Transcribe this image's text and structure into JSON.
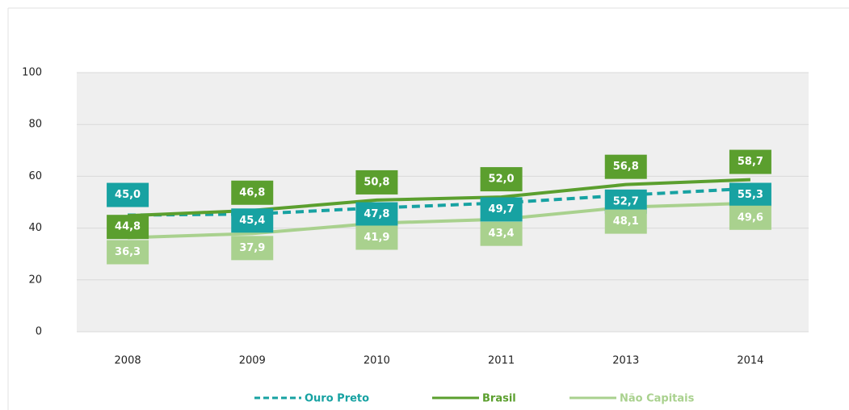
{
  "chart_data": {
    "type": "line",
    "categories": [
      "2008",
      "2009",
      "2010",
      "2011",
      "2013",
      "2014"
    ],
    "series": [
      {
        "name": "Ouro Preto",
        "color": "#17a2a2",
        "dashed": true,
        "values": [
          45.0,
          45.4,
          47.8,
          49.7,
          52.7,
          55.3
        ],
        "value_labels": [
          "45,0",
          "45,4",
          "47,8",
          "49,7",
          "52,7",
          "55,3"
        ]
      },
      {
        "name": "Brasil",
        "color": "#5b9f2e",
        "dashed": false,
        "values": [
          44.8,
          46.8,
          50.8,
          52.0,
          56.8,
          58.7
        ],
        "value_labels": [
          "44,8",
          "46,8",
          "50,8",
          "52,0",
          "56,8",
          "58,7"
        ]
      },
      {
        "name": "Não Capitais",
        "color": "#a9d18e",
        "dashed": false,
        "values": [
          36.3,
          37.9,
          41.9,
          43.4,
          48.1,
          49.6
        ],
        "value_labels": [
          "36,3",
          "37,9",
          "41,9",
          "43,4",
          "48,1",
          "49,6"
        ]
      }
    ],
    "ylim": [
      0,
      100
    ],
    "yticks": [
      0,
      20,
      40,
      60,
      80,
      100
    ],
    "grid": true,
    "legend": "bottom"
  }
}
